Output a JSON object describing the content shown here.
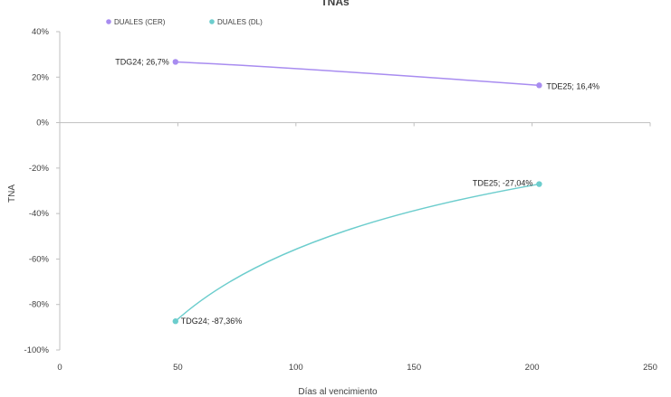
{
  "chart_data": {
    "type": "scatter",
    "title": "TNAs",
    "xlabel": "Días al vencimiento",
    "ylabel": "TNA",
    "xlim": [
      0,
      250
    ],
    "ylim": [
      -100,
      40
    ],
    "x_ticks": [
      0,
      50,
      100,
      150,
      200,
      250
    ],
    "y_ticks": [
      40,
      20,
      0,
      -20,
      -40,
      -60,
      -80,
      -100
    ],
    "x_tick_labels": [
      "0",
      "50",
      "100",
      "150",
      "200",
      "250"
    ],
    "y_tick_labels": [
      "40%",
      "20%",
      "0%",
      "-20%",
      "-40%",
      "-60%",
      "-80%",
      "-100%"
    ],
    "grid": false,
    "legend_position": "top-left",
    "series": [
      {
        "name": "DUALES (CER)",
        "color": "#a88cf0",
        "points": [
          {
            "x": 49,
            "y": 26.7,
            "label": "TDG24; 26,7%"
          },
          {
            "x": 203,
            "y": 16.4,
            "label": "TDE25; 16,4%"
          }
        ]
      },
      {
        "name": "DUALES (DL)",
        "color": "#6ccdcd",
        "points": [
          {
            "x": 49,
            "y": -87.36,
            "label": "TDG24; -87,36%"
          },
          {
            "x": 203,
            "y": -27.04,
            "label": "TDE25; -27,04%"
          }
        ]
      }
    ]
  }
}
